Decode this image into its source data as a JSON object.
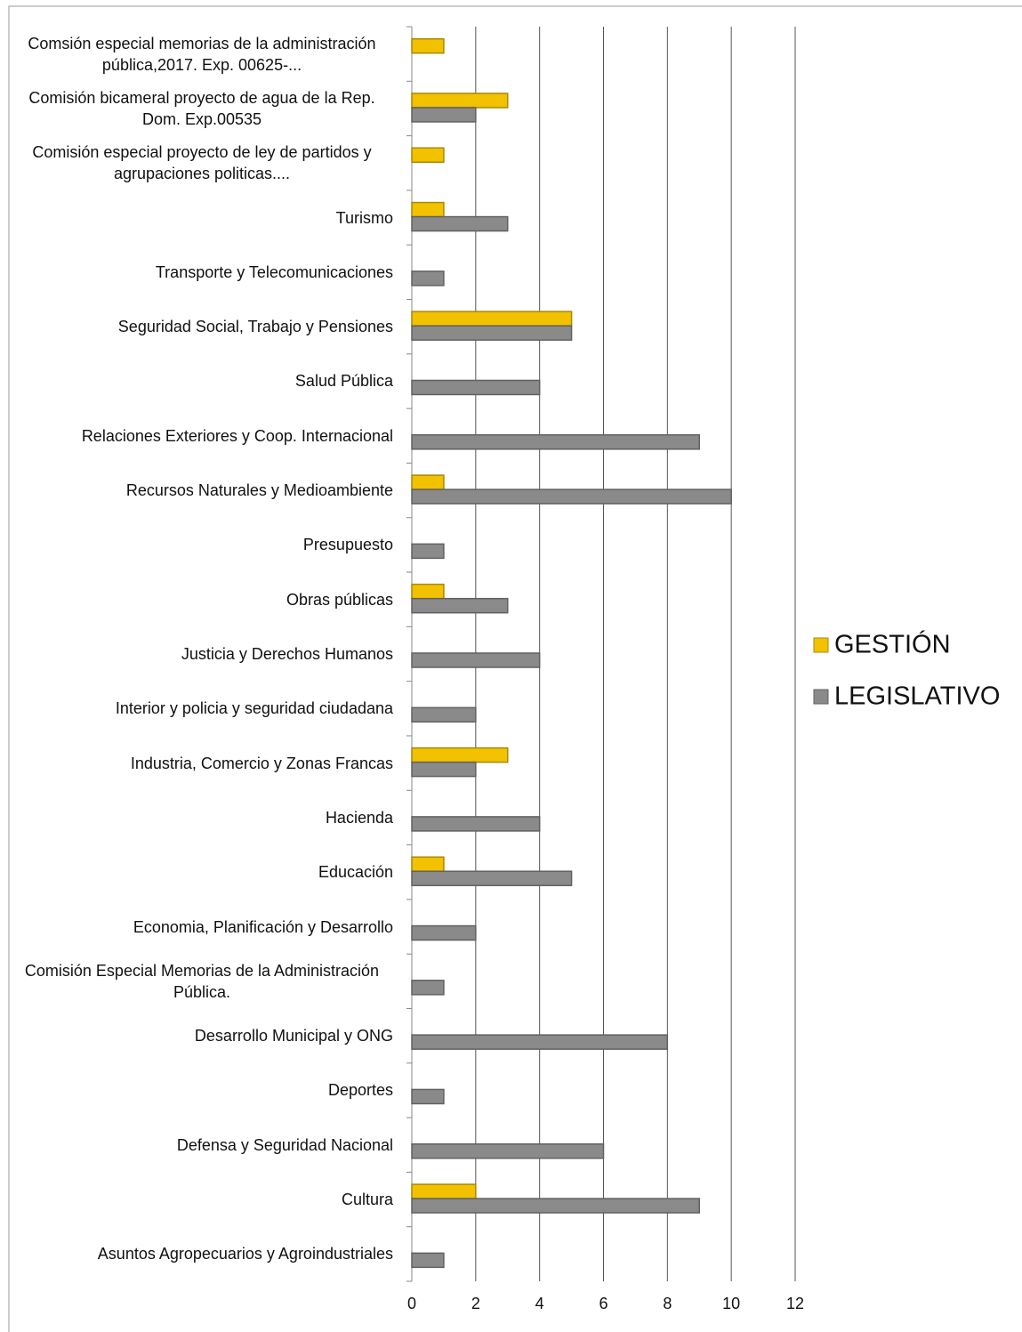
{
  "chart_data": {
    "type": "hbar",
    "categories": [
      "Comsión especial memorias de la administración pública,2017. Exp. 00625-...",
      "Comisión bicameral proyecto de agua de la Rep. Dom. Exp.00535",
      "Comisión especial proyecto de ley de partidos y agrupaciones politicas....",
      "Turismo",
      "Transporte y Telecomunicaciones",
      "Seguridad Social, Trabajo y Pensiones",
      "Salud Pública",
      "Relaciones Exteriores y Coop. Internacional",
      "Recursos Naturales y Medioambiente",
      "Presupuesto",
      "Obras públicas",
      "Justicia y Derechos Humanos",
      "Interior y policia y seguridad ciudadana",
      "Industria, Comercio y Zonas Francas",
      "Hacienda",
      "Educación",
      "Economia, Planificación y Desarrollo",
      "Comisión Especial Memorias de la Administración Pública.",
      "Desarrollo Municipal y ONG",
      "Deportes",
      "Defensa y Seguridad Nacional",
      "Cultura",
      "Asuntos Agropecuarios y Agroindustriales"
    ],
    "series": [
      {
        "name": "GESTIÓN",
        "color": "#f2c200",
        "values": [
          1,
          3,
          1,
          1,
          null,
          5,
          null,
          null,
          1,
          null,
          1,
          null,
          null,
          3,
          null,
          1,
          null,
          null,
          null,
          null,
          null,
          2,
          null
        ]
      },
      {
        "name": "LEGISLATIVO",
        "color": "#8a8a8a",
        "values": [
          null,
          2,
          null,
          3,
          1,
          5,
          4,
          9,
          10,
          1,
          3,
          4,
          2,
          2,
          4,
          5,
          2,
          1,
          8,
          1,
          6,
          9,
          1
        ]
      }
    ],
    "xlim": [
      0,
      12
    ],
    "xticks": [
      0,
      2,
      4,
      6,
      8,
      10,
      12
    ],
    "grid": true,
    "legend": "right"
  }
}
